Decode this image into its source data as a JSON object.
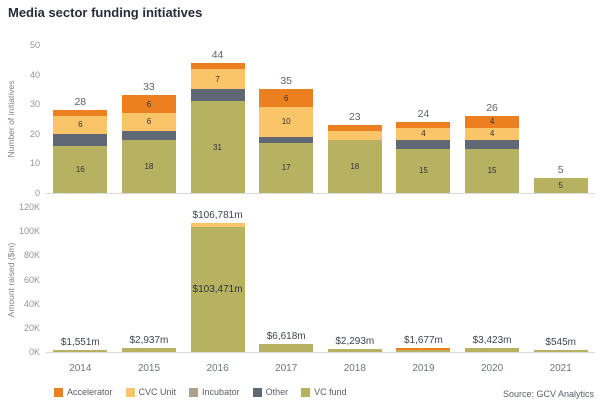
{
  "title": "Media sector funding initiatives",
  "source": "Source: GCV Analytics",
  "colors": {
    "accelerator": "#EC7F1F",
    "cvc_unit": "#FAC469",
    "incubator": "#ADA18E",
    "other": "#606876",
    "vc_fund": "#B7B262",
    "axis_line": "#D8DBDE",
    "title_text": "#262C38"
  },
  "legend": {
    "items": [
      {
        "label": "Accelerator",
        "color_key": "accelerator"
      },
      {
        "label": "CVC Unit",
        "color_key": "cvc_unit"
      },
      {
        "label": "Incubator",
        "color_key": "incubator"
      },
      {
        "label": "Other",
        "color_key": "other"
      },
      {
        "label": "VC fund",
        "color_key": "vc_fund"
      }
    ]
  },
  "chart_data": [
    {
      "type": "bar",
      "stacked": true,
      "ylabel": "Number of initiatives",
      "ylim": [
        0,
        50
      ],
      "grid": false,
      "categories": [
        "2014",
        "2015",
        "2016",
        "2017",
        "2018",
        "2019",
        "2020",
        "2021"
      ],
      "yticks": [
        {
          "value": 0,
          "label": "0"
        },
        {
          "value": 10,
          "label": "10"
        },
        {
          "value": 20,
          "label": "20"
        },
        {
          "value": 30,
          "label": "30"
        },
        {
          "value": 40,
          "label": "40"
        },
        {
          "value": 50,
          "label": "50"
        }
      ],
      "series": [
        {
          "name": "VC fund",
          "color_key": "vc_fund",
          "values": [
            16,
            18,
            31,
            17,
            18,
            15,
            15,
            5
          ],
          "labels": [
            "16",
            "18",
            "31",
            "17",
            "18",
            "15",
            "15",
            "5"
          ]
        },
        {
          "name": "Other",
          "color_key": "other",
          "values": [
            4,
            3,
            4,
            2,
            0,
            3,
            3,
            0
          ],
          "labels": [
            null,
            null,
            null,
            null,
            null,
            null,
            null,
            null
          ]
        },
        {
          "name": "Incubator",
          "color_key": "incubator",
          "values": [
            0,
            0,
            0,
            0,
            0,
            0,
            0,
            0
          ],
          "labels": [
            null,
            null,
            null,
            null,
            null,
            null,
            null,
            null
          ]
        },
        {
          "name": "CVC Unit",
          "color_key": "cvc_unit",
          "values": [
            6,
            6,
            7,
            10,
            3,
            4,
            4,
            0
          ],
          "labels": [
            "6",
            "6",
            "7",
            "10",
            null,
            "4",
            "4",
            null
          ]
        },
        {
          "name": "Accelerator",
          "color_key": "accelerator",
          "values": [
            2,
            6,
            2,
            6,
            2,
            2,
            4,
            0
          ],
          "labels": [
            null,
            "6",
            null,
            "6",
            null,
            null,
            "4",
            null
          ]
        }
      ],
      "total_labels": [
        "28",
        "33",
        "44",
        "35",
        "23",
        "24",
        "26",
        "5"
      ]
    },
    {
      "type": "bar",
      "stacked": true,
      "ylabel": "Amount raised ($m)",
      "ylim": [
        0,
        120000
      ],
      "grid": false,
      "categories": [
        "2014",
        "2015",
        "2016",
        "2017",
        "2018",
        "2019",
        "2020",
        "2021"
      ],
      "yticks": [
        {
          "value": 0,
          "label": "0K"
        },
        {
          "value": 20000,
          "label": "20K"
        },
        {
          "value": 40000,
          "label": "40K"
        },
        {
          "value": 60000,
          "label": "60K"
        },
        {
          "value": 80000,
          "label": "80K"
        },
        {
          "value": 100000,
          "label": "100K"
        },
        {
          "value": 120000,
          "label": "120K"
        }
      ],
      "series": [
        {
          "name": "VC fund",
          "color_key": "vc_fund",
          "values": [
            1551,
            2937,
            103471,
            6618,
            2293,
            1677,
            3423,
            545
          ],
          "labels": [
            null,
            null,
            "$103,471m",
            null,
            null,
            null,
            null,
            null
          ]
        },
        {
          "name": "CVC Unit",
          "color_key": "cvc_unit",
          "values": [
            0,
            0,
            3310,
            0,
            0,
            0,
            0,
            0
          ],
          "labels": [
            null,
            null,
            null,
            null,
            null,
            null,
            null,
            null
          ]
        },
        {
          "name": "Accelerator",
          "color_key": "accelerator",
          "values": [
            0,
            0,
            0,
            0,
            0,
            null,
            0,
            0
          ],
          "labels": [
            null,
            null,
            null,
            null,
            null,
            null,
            null,
            null
          ]
        }
      ],
      "total_labels": [
        "$1,551m",
        "$2,937m",
        "$106,781m",
        "$6,618m",
        "$2,293m",
        "$1,677m",
        "$3,423m",
        "$545m"
      ]
    }
  ]
}
